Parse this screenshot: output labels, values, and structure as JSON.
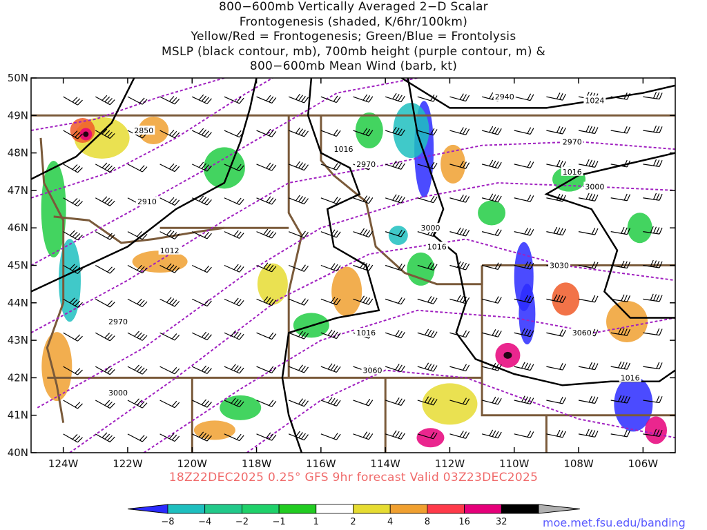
{
  "title_lines": [
    "800−600mb Vertically Averaged 2−D Scalar",
    "Frontogenesis (shaded, K/6hr/100km)",
    "Yellow/Red = Frontogenesis;  Green/Blue = Frontolysis",
    "MSLP (black contour, mb), 700mb height (purple contour, m) &",
    "800−600mb Mean Wind (barb, kt)"
  ],
  "valid_line": "18Z22DEC2025 0.25° GFS 9hr forecast Valid 03Z23DEC2025",
  "credit": "moe.met.fsu.edu/banding",
  "map": {
    "lon_ticks": [
      "124W",
      "122W",
      "120W",
      "118W",
      "116W",
      "114W",
      "112W",
      "110W",
      "108W",
      "106W"
    ],
    "lat_ticks": [
      "50N",
      "49N",
      "48N",
      "47N",
      "46N",
      "45N",
      "44N",
      "43N",
      "42N",
      "41N",
      "40N"
    ],
    "lon_range": [
      -125,
      -105
    ],
    "lat_range": [
      40,
      50
    ],
    "colors": {
      "mslp_contour": "#000000",
      "height_contour": "#a020c0",
      "border": "#7a5a3a",
      "barb": "#000000"
    },
    "mslp_labels": [
      {
        "text": "1024",
        "lon": -107.5,
        "lat": 49.4
      },
      {
        "text": "1016",
        "lon": -115.3,
        "lat": 48.1
      },
      {
        "text": "1016",
        "lon": -108.2,
        "lat": 47.5
      },
      {
        "text": "1012",
        "lon": -120.7,
        "lat": 45.4
      },
      {
        "text": "1016",
        "lon": -112.4,
        "lat": 45.5
      },
      {
        "text": "1016",
        "lon": -114.6,
        "lat": 43.2
      },
      {
        "text": "1016",
        "lon": -106.4,
        "lat": 42.0
      }
    ],
    "height_labels": [
      {
        "text": "2940",
        "lon": -110.3,
        "lat": 49.5
      },
      {
        "text": "2850",
        "lon": -121.5,
        "lat": 48.6
      },
      {
        "text": "2970",
        "lon": -108.2,
        "lat": 48.3
      },
      {
        "text": "2970",
        "lon": -114.6,
        "lat": 47.7
      },
      {
        "text": "2910",
        "lon": -121.4,
        "lat": 46.7
      },
      {
        "text": "3000",
        "lon": -107.5,
        "lat": 47.1
      },
      {
        "text": "3000",
        "lon": -112.6,
        "lat": 46.0
      },
      {
        "text": "2970",
        "lon": -122.3,
        "lat": 43.5
      },
      {
        "text": "3030",
        "lon": -108.6,
        "lat": 45.0
      },
      {
        "text": "3060",
        "lon": -107.9,
        "lat": 43.2
      },
      {
        "text": "3060",
        "lon": -114.4,
        "lat": 42.2
      },
      {
        "text": "3000",
        "lon": -122.3,
        "lat": 41.6
      }
    ]
  },
  "colorbar": {
    "labels": [
      "−8",
      "−4",
      "−2",
      "−1",
      "1",
      "2",
      "4",
      "8",
      "16",
      "32"
    ],
    "colors": [
      "#2b2bff",
      "#1ebfbf",
      "#22c98a",
      "#22cc44",
      "#3ad23a",
      "#ffffff",
      "#e6dc32",
      "#f0a030",
      "#f05a28",
      "#ff3a4a",
      "#e6007a",
      "#000000",
      "#b0b0b0"
    ]
  }
}
